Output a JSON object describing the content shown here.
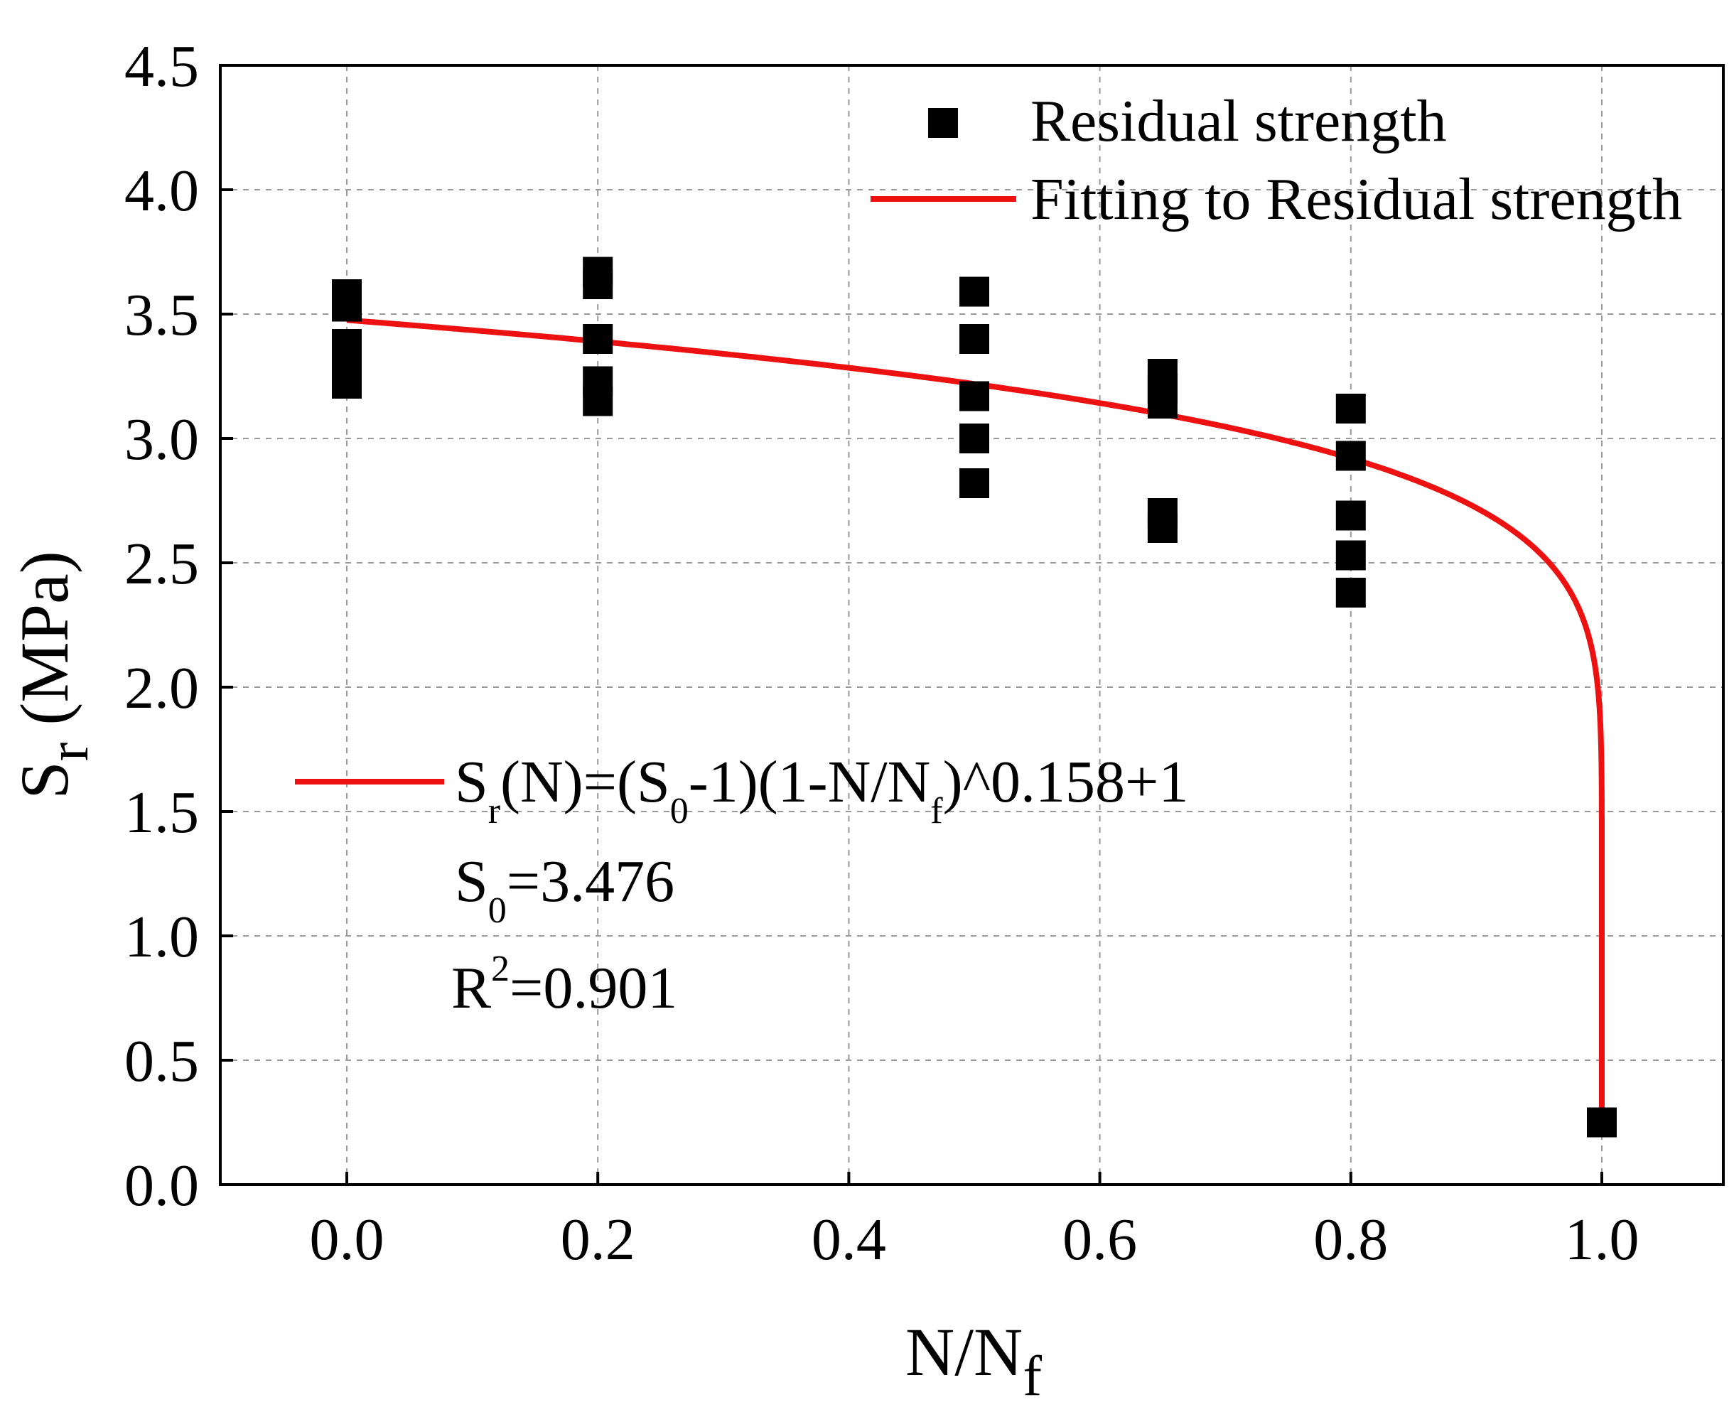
{
  "chart_data": {
    "type": "scatter",
    "title": "",
    "xlabel": {
      "base": "N/N",
      "sub": "f"
    },
    "ylabel": {
      "base": "S",
      "sub": "r",
      "rest": " (MPa)"
    },
    "xlim": [
      -0.2,
      2.2
    ],
    "ylim": [
      0,
      4.5
    ],
    "x_ticks": [
      0.0,
      0.2,
      0.4,
      0.6,
      0.8,
      1.0
    ],
    "x_tick_labels": [
      "0.0",
      "0.2",
      "0.4",
      "0.6",
      "0.8",
      "1.0"
    ],
    "y_ticks": [
      0.0,
      0.5,
      1.0,
      1.5,
      2.0,
      2.5,
      3.0,
      3.5,
      4.0,
      4.5
    ],
    "y_tick_labels": [
      "0.0",
      "0.5",
      "1.0",
      "1.5",
      "2.0",
      "2.5",
      "3.0",
      "3.5",
      "4.0",
      "4.5"
    ],
    "grid": true,
    "legend_position": "top-right",
    "series": [
      {
        "name": "Residual strength",
        "kind": "scatter",
        "color": "#000000",
        "marker": "square",
        "points": [
          {
            "x": 0.0,
            "y": 3.58
          },
          {
            "x": 0.0,
            "y": 3.53
          },
          {
            "x": 0.0,
            "y": 3.38
          },
          {
            "x": 0.0,
            "y": 3.3
          },
          {
            "x": 0.0,
            "y": 3.22
          },
          {
            "x": 0.2,
            "y": 3.67
          },
          {
            "x": 0.2,
            "y": 3.62
          },
          {
            "x": 0.2,
            "y": 3.4
          },
          {
            "x": 0.2,
            "y": 3.23
          },
          {
            "x": 0.2,
            "y": 3.15
          },
          {
            "x": 0.5,
            "y": 3.59
          },
          {
            "x": 0.5,
            "y": 3.4
          },
          {
            "x": 0.5,
            "y": 3.17
          },
          {
            "x": 0.5,
            "y": 3.0
          },
          {
            "x": 0.5,
            "y": 2.82
          },
          {
            "x": 0.65,
            "y": 3.26
          },
          {
            "x": 0.65,
            "y": 3.2
          },
          {
            "x": 0.65,
            "y": 3.14
          },
          {
            "x": 0.65,
            "y": 2.7
          },
          {
            "x": 0.65,
            "y": 2.64
          },
          {
            "x": 0.8,
            "y": 3.12
          },
          {
            "x": 0.8,
            "y": 2.93
          },
          {
            "x": 0.8,
            "y": 2.69
          },
          {
            "x": 0.8,
            "y": 2.53
          },
          {
            "x": 0.8,
            "y": 2.38
          },
          {
            "x": 1.0,
            "y": 0.25
          }
        ]
      },
      {
        "name": "Fitting to Residual strength",
        "kind": "line",
        "color": "#ee1111",
        "equation": {
          "S0": 3.476,
          "exponent": 0.158,
          "x_start": 0.0,
          "x_end": 1.0,
          "y_end": 0.25
        }
      }
    ],
    "annotations": {
      "equation": {
        "parts": [
          {
            "t": "S"
          },
          {
            "t": "r",
            "sub": true
          },
          {
            "t": "(N)=(S"
          },
          {
            "t": "0",
            "sub": true
          },
          {
            "t": "-1)(1-N/N"
          },
          {
            "t": "f",
            "sub": true
          },
          {
            "t": ")^0.158+1"
          }
        ]
      },
      "s0": {
        "parts": [
          {
            "t": "S"
          },
          {
            "t": "0",
            "sub": true
          },
          {
            "t": "=3.476"
          }
        ]
      },
      "r2": {
        "parts": [
          {
            "t": "R"
          },
          {
            "t": "2",
            "sup": true
          },
          {
            "t": "=0.901"
          }
        ]
      }
    }
  }
}
